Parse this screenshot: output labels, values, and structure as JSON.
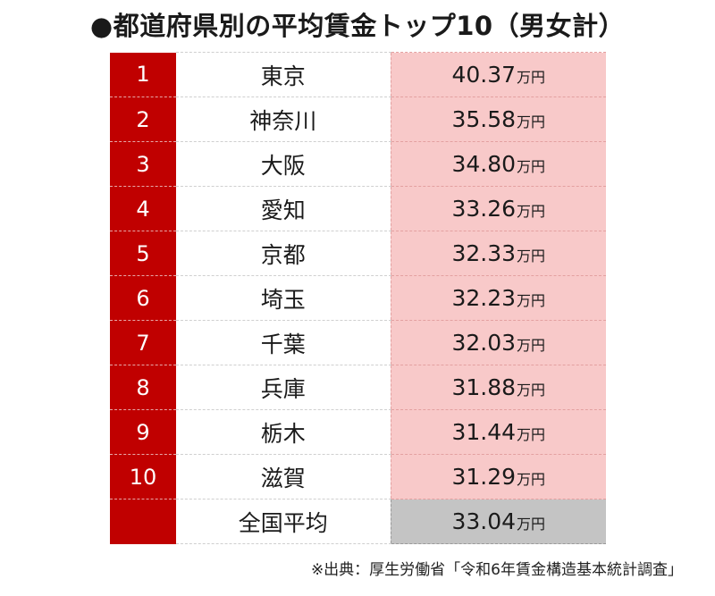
{
  "title": "●都道府県別の平均賃金トップ10（男女計）",
  "source": "※出典：厚生労働省「令和6年賃金構造基本統計調査」",
  "colors": {
    "rank_bg": "#c00000",
    "wage_bg": "#f8c9c9",
    "average_bg": "#c4c4c4"
  },
  "chart_data": {
    "type": "table",
    "title": "●都道府県別の平均賃金トップ10（男女計）",
    "unit": "万円",
    "rows": [
      {
        "rank": "1",
        "prefecture": "東京",
        "wage": "40.37",
        "unit": "万円"
      },
      {
        "rank": "2",
        "prefecture": "神奈川",
        "wage": "35.58",
        "unit": "万円"
      },
      {
        "rank": "3",
        "prefecture": "大阪",
        "wage": "34.80",
        "unit": "万円"
      },
      {
        "rank": "4",
        "prefecture": "愛知",
        "wage": "33.26",
        "unit": "万円"
      },
      {
        "rank": "5",
        "prefecture": "京都",
        "wage": "32.33",
        "unit": "万円"
      },
      {
        "rank": "6",
        "prefecture": "埼玉",
        "wage": "32.23",
        "unit": "万円"
      },
      {
        "rank": "7",
        "prefecture": "千葉",
        "wage": "32.03",
        "unit": "万円"
      },
      {
        "rank": "8",
        "prefecture": "兵庫",
        "wage": "31.88",
        "unit": "万円"
      },
      {
        "rank": "9",
        "prefecture": "栃木",
        "wage": "31.44",
        "unit": "万円"
      },
      {
        "rank": "10",
        "prefecture": "滋賀",
        "wage": "31.29",
        "unit": "万円"
      }
    ],
    "average": {
      "rank": "",
      "prefecture": "全国平均",
      "wage": "33.04",
      "unit": "万円"
    }
  }
}
